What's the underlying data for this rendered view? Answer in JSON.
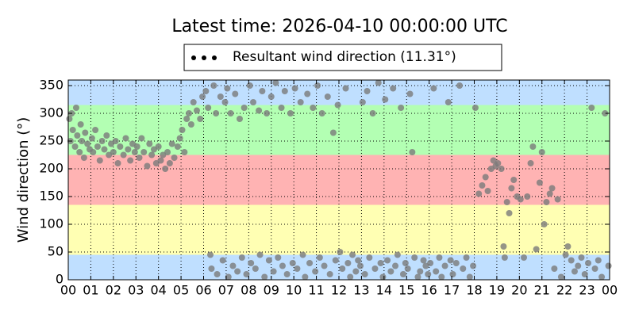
{
  "chart_data": {
    "type": "scatter",
    "title": "Latest time: 2026-04-10 00:00:00 UTC",
    "ylabel": "Wind direction (°)",
    "legend": "top",
    "grid": true,
    "xlim": [
      0,
      24
    ],
    "xticks": [
      {
        "value": 0,
        "label": "00"
      },
      {
        "value": 1,
        "label": "01"
      },
      {
        "value": 2,
        "label": "02"
      },
      {
        "value": 3,
        "label": "03"
      },
      {
        "value": 4,
        "label": "04"
      },
      {
        "value": 5,
        "label": "05"
      },
      {
        "value": 6,
        "label": "06"
      },
      {
        "value": 7,
        "label": "07"
      },
      {
        "value": 8,
        "label": "08"
      },
      {
        "value": 9,
        "label": "09"
      },
      {
        "value": 10,
        "label": "10"
      },
      {
        "value": 11,
        "label": "11"
      },
      {
        "value": 12,
        "label": "12"
      },
      {
        "value": 13,
        "label": "13"
      },
      {
        "value": 14,
        "label": "14"
      },
      {
        "value": 15,
        "label": "15"
      },
      {
        "value": 16,
        "label": "16"
      },
      {
        "value": 17,
        "label": "17"
      },
      {
        "value": 18,
        "label": "18"
      },
      {
        "value": 19,
        "label": "19"
      },
      {
        "value": 20,
        "label": "20"
      },
      {
        "value": 21,
        "label": "21"
      },
      {
        "value": 22,
        "label": "22"
      },
      {
        "value": 23,
        "label": "23"
      },
      {
        "value": 24,
        "label": "00"
      }
    ],
    "ylim": [
      0,
      360
    ],
    "yticks": [
      0,
      50,
      100,
      150,
      200,
      250,
      300,
      350
    ],
    "bands": [
      {
        "from": 0,
        "to": 45,
        "color": "#bfdfff"
      },
      {
        "from": 45,
        "to": 135,
        "color": "#ffffb3"
      },
      {
        "from": 135,
        "to": 225,
        "color": "#ffb3b3"
      },
      {
        "from": 225,
        "to": 315,
        "color": "#b3ffb3"
      },
      {
        "from": 315,
        "to": 360,
        "color": "#bfdfff"
      }
    ],
    "series": [
      {
        "name": "Resultant wind direction (11.31°)",
        "color": "#7a7a7a",
        "x": [
          0.05,
          0.1,
          0.15,
          0.2,
          0.3,
          0.35,
          0.4,
          0.5,
          0.55,
          0.6,
          0.7,
          0.75,
          0.85,
          0.95,
          1.05,
          1.1,
          1.2,
          1.3,
          1.4,
          1.5,
          1.6,
          1.7,
          1.8,
          1.9,
          2.0,
          2.1,
          2.2,
          2.3,
          2.45,
          2.55,
          2.65,
          2.75,
          2.85,
          2.95,
          3.05,
          3.15,
          3.25,
          3.35,
          3.5,
          3.6,
          3.7,
          3.8,
          3.9,
          4.0,
          4.1,
          4.2,
          4.3,
          4.4,
          4.5,
          4.6,
          4.7,
          4.85,
          4.95,
          5.05,
          5.15,
          5.25,
          5.35,
          5.45,
          5.55,
          5.7,
          5.85,
          5.95,
          6.1,
          6.2,
          6.3,
          6.35,
          6.45,
          6.55,
          6.6,
          6.75,
          6.85,
          6.95,
          7.05,
          7.1,
          7.2,
          7.3,
          7.4,
          7.5,
          7.6,
          7.7,
          7.8,
          7.9,
          8.05,
          8.1,
          8.2,
          8.3,
          8.45,
          8.5,
          8.6,
          8.7,
          8.8,
          8.9,
          9.0,
          9.1,
          9.2,
          9.3,
          9.45,
          9.5,
          9.6,
          9.7,
          9.85,
          9.95,
          10.05,
          10.15,
          10.3,
          10.4,
          10.5,
          10.6,
          10.7,
          10.85,
          10.95,
          11.05,
          11.15,
          11.25,
          11.35,
          11.5,
          11.6,
          11.75,
          11.85,
          11.95,
          12.05,
          12.15,
          12.3,
          12.4,
          12.5,
          12.6,
          12.75,
          12.85,
          12.95,
          13.05,
          13.15,
          13.25,
          13.35,
          13.5,
          13.6,
          13.75,
          13.85,
          13.95,
          14.05,
          14.15,
          14.3,
          14.4,
          14.5,
          14.6,
          14.75,
          14.85,
          14.95,
          15.05,
          15.15,
          15.25,
          15.35,
          15.5,
          15.6,
          15.75,
          15.85,
          15.95,
          16.05,
          16.2,
          16.3,
          16.45,
          16.55,
          16.7,
          16.85,
          16.95,
          17.05,
          17.2,
          17.35,
          17.5,
          17.65,
          17.8,
          17.95,
          18.05,
          18.2,
          18.35,
          18.5,
          18.6,
          18.75,
          18.85,
          18.95,
          19.05,
          19.2,
          19.3,
          19.35,
          19.45,
          19.55,
          19.65,
          19.75,
          19.9,
          20.05,
          20.2,
          20.35,
          20.5,
          20.6,
          20.75,
          20.9,
          21.0,
          21.1,
          21.2,
          21.35,
          21.45,
          21.55,
          21.7,
          21.85,
          22.05,
          22.15,
          22.3,
          22.45,
          22.6,
          22.75,
          22.9,
          23.05,
          23.2,
          23.35,
          23.5,
          23.65,
          23.8,
          23.95
        ],
        "values": [
          290,
          250,
          300,
          270,
          240,
          310,
          260,
          230,
          280,
          250,
          220,
          265,
          245,
          235,
          255,
          230,
          270,
          240,
          215,
          250,
          235,
          260,
          225,
          245,
          230,
          250,
          210,
          240,
          225,
          255,
          235,
          215,
          245,
          230,
          240,
          220,
          255,
          230,
          205,
          245,
          225,
          235,
          210,
          240,
          215,
          225,
          200,
          230,
          210,
          245,
          220,
          240,
          255,
          270,
          230,
          290,
          300,
          280,
          320,
          305,
          290,
          330,
          340,
          310,
          45,
          20,
          350,
          300,
          10,
          330,
          35,
          320,
          345,
          5,
          300,
          25,
          335,
          15,
          290,
          40,
          310,
          10,
          350,
          30,
          320,
          20,
          305,
          45,
          340,
          5,
          300,
          35,
          330,
          15,
          355,
          40,
          310,
          25,
          340,
          10,
          300,
          30,
          345,
          20,
          320,
          45,
          5,
          335,
          30,
          310,
          15,
          350,
          40,
          300,
          25,
          330,
          10,
          265,
          35,
          315,
          50,
          20,
          345,
          30,
          5,
          45,
          15,
          35,
          25,
          320,
          10,
          340,
          40,
          300,
          20,
          355,
          30,
          5,
          325,
          35,
          15,
          345,
          25,
          45,
          310,
          10,
          30,
          20,
          335,
          230,
          40,
          5,
          15,
          35,
          25,
          10,
          30,
          345,
          15,
          40,
          5,
          25,
          320,
          35,
          10,
          30,
          350,
          20,
          40,
          5,
          25,
          310,
          155,
          170,
          185,
          160,
          200,
          215,
          205,
          210,
          200,
          60,
          40,
          140,
          120,
          165,
          180,
          150,
          145,
          40,
          150,
          210,
          240,
          55,
          175,
          230,
          100,
          140,
          155,
          165,
          20,
          145,
          5,
          45,
          60,
          35,
          15,
          25,
          40,
          10,
          30,
          310,
          20,
          35,
          5,
          300,
          25
        ]
      }
    ]
  }
}
